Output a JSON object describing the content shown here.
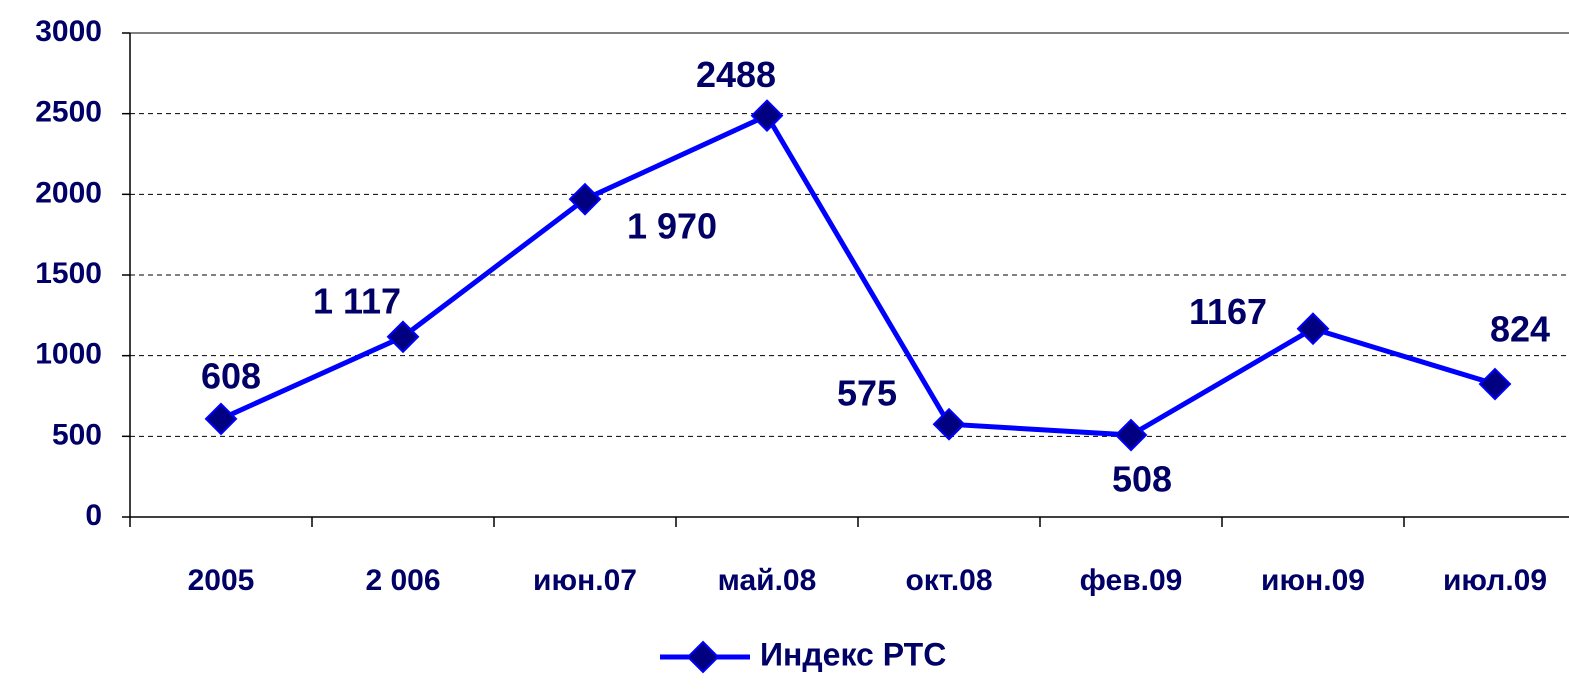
{
  "chart_data": {
    "type": "line",
    "categories": [
      "2005",
      "2 006",
      "июн.07",
      "май.08",
      "окт.08",
      "фев.09",
      "июн.09",
      "июл.09"
    ],
    "series": [
      {
        "name": "Индекс РТС",
        "color": "#0000ff",
        "marker_color": "#000080",
        "values": [
          608,
          1117,
          1970,
          2488,
          575,
          508,
          1167,
          824
        ],
        "value_labels": [
          "608",
          "1 117",
          "1 970",
          "2488",
          "575",
          "508",
          "1167",
          "824"
        ]
      }
    ],
    "ylim": [
      0,
      3000
    ],
    "yticks": [
      0,
      500,
      1000,
      1500,
      2000,
      2500,
      3000
    ],
    "grid": true,
    "legend": "bottom"
  }
}
